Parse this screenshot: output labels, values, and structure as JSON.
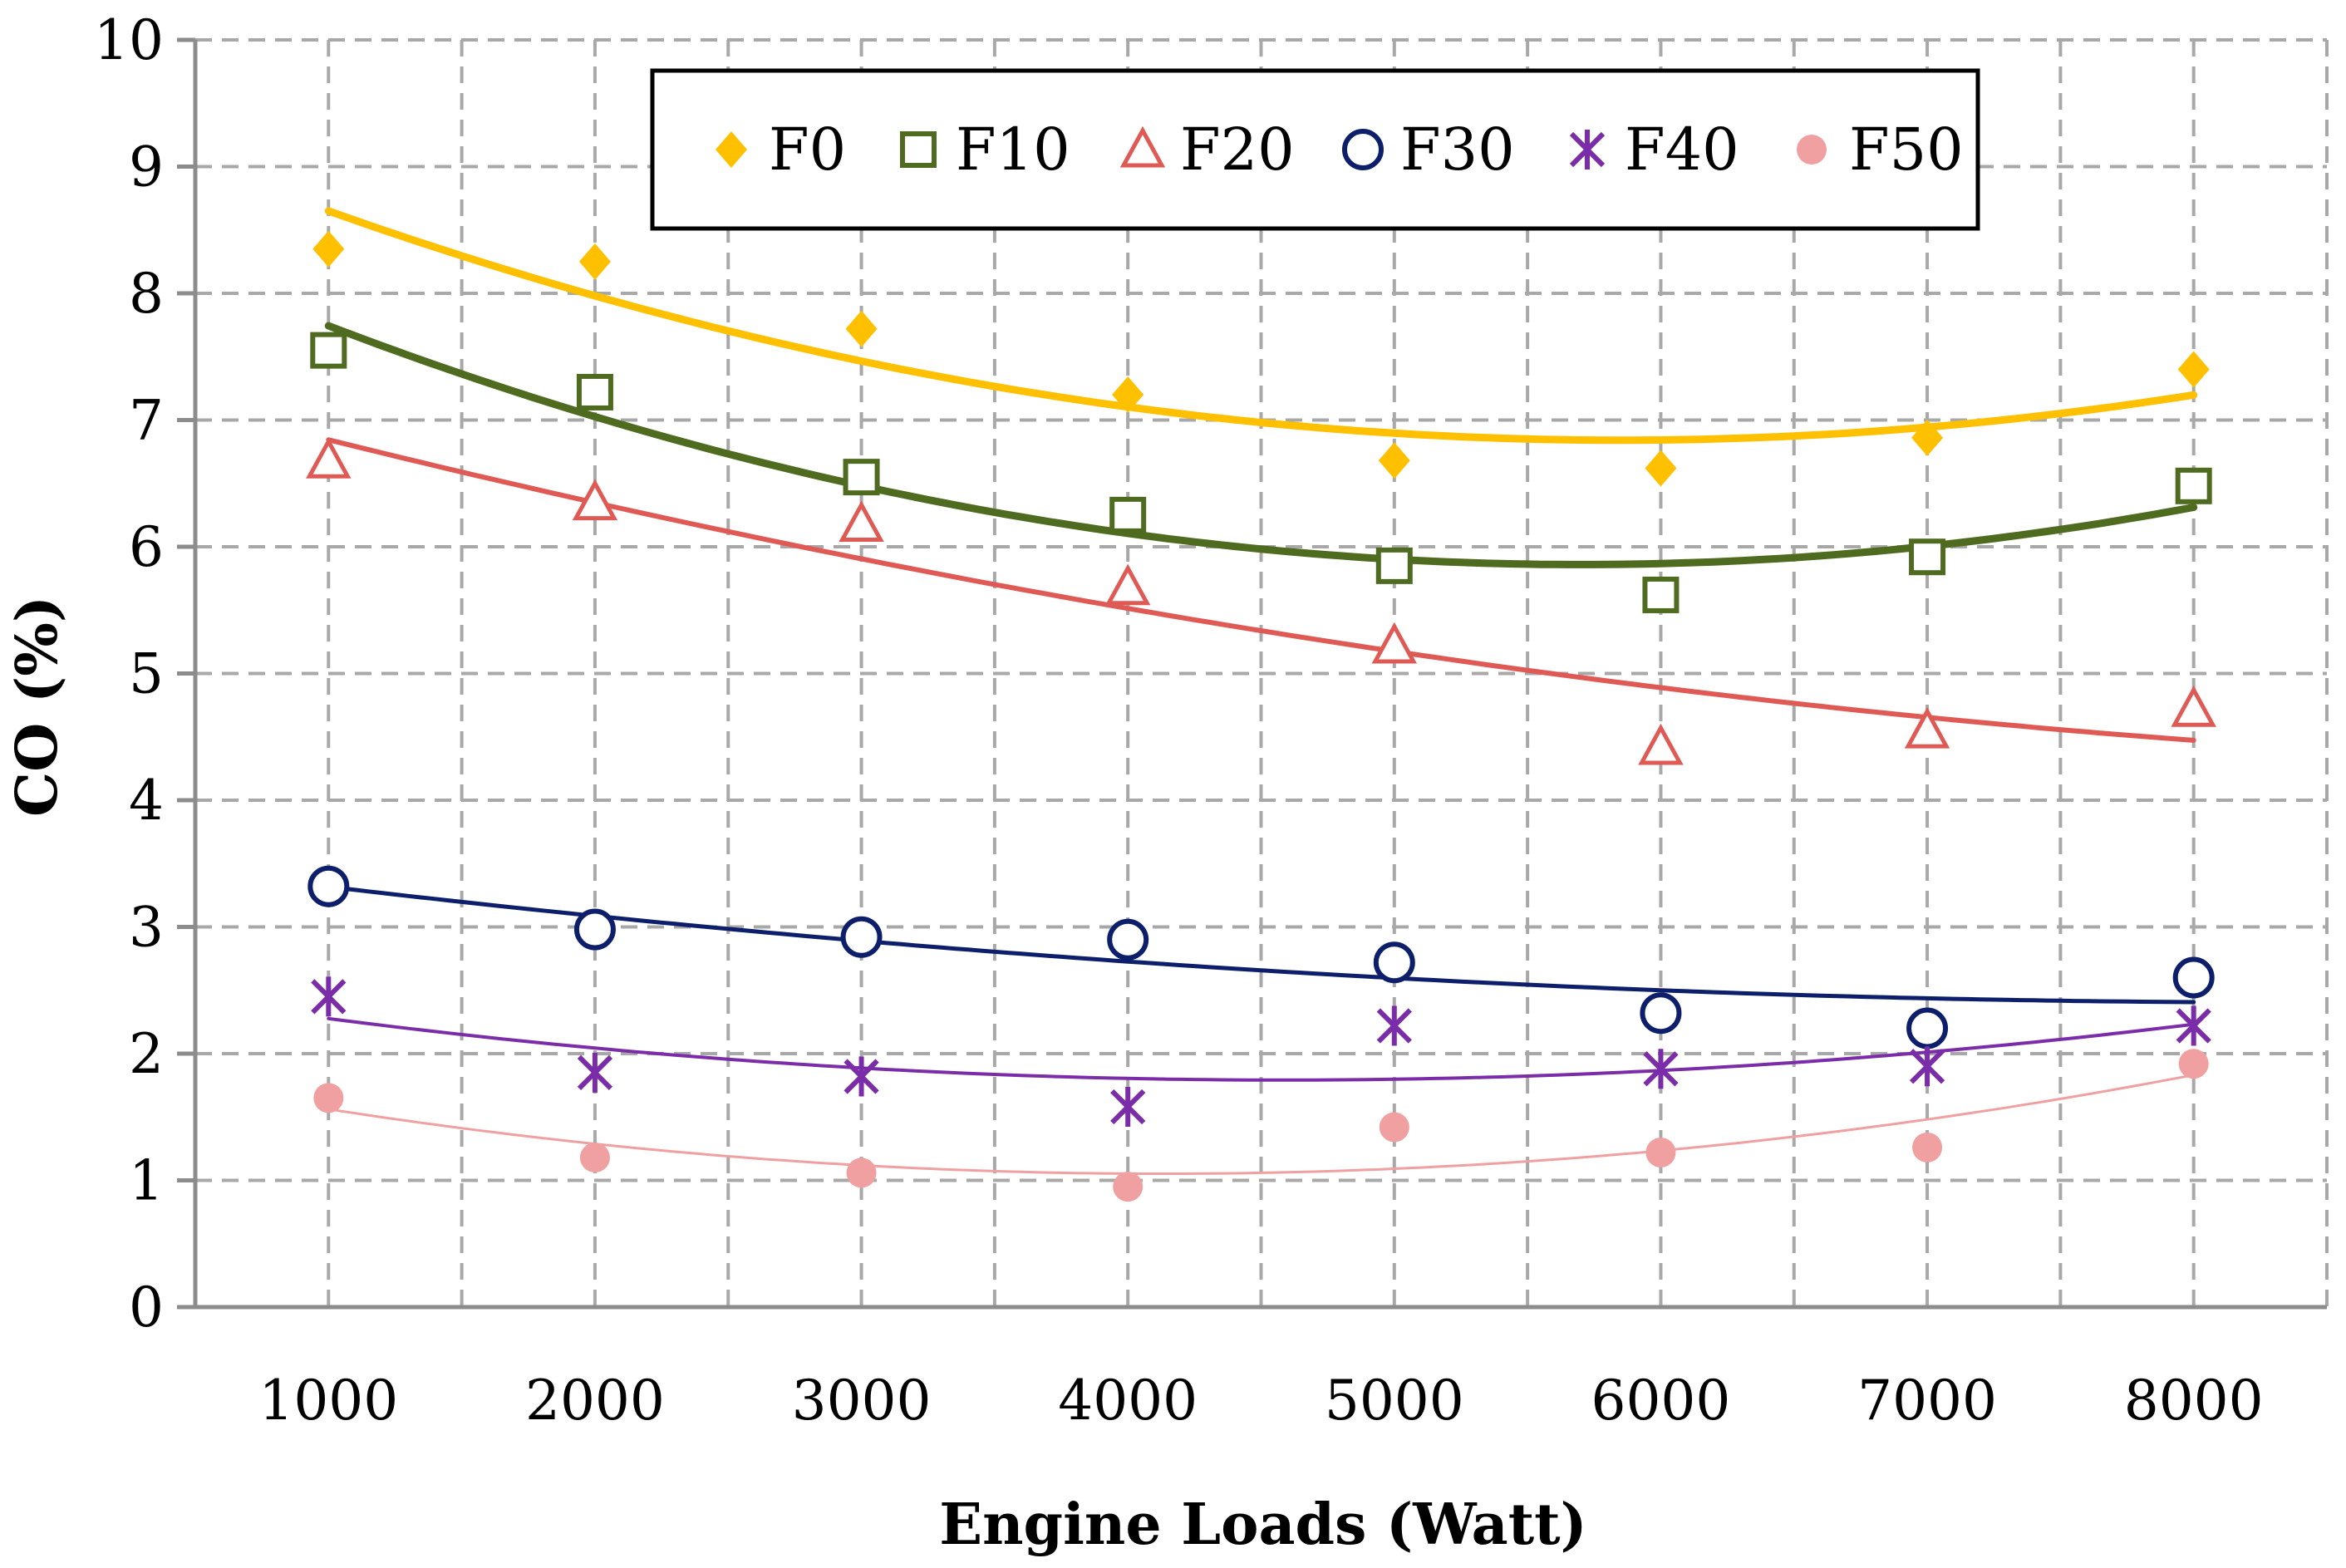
{
  "chart_data": {
    "type": "scatter",
    "xlabel": "Engine Loads (Watt)",
    "ylabel": "CO (%)",
    "x": [
      1000,
      2000,
      3000,
      4000,
      5000,
      6000,
      7000,
      8000
    ],
    "xlim": [
      500,
      8500
    ],
    "ylim": [
      0,
      10
    ],
    "x_ticks": [
      "1000",
      "2000",
      "3000",
      "4000",
      "5000",
      "6000",
      "7000",
      "8000"
    ],
    "y_ticks": [
      "0",
      "1",
      "2",
      "3",
      "4",
      "5",
      "6",
      "7",
      "8",
      "9",
      "10"
    ],
    "grid": true,
    "legend_position": "top-center",
    "trendline": "polynomial",
    "series": [
      {
        "name": "F0",
        "marker": "diamond",
        "color": "#FFC000",
        "values": [
          8.35,
          8.25,
          7.72,
          7.2,
          6.68,
          6.62,
          6.86,
          7.4
        ]
      },
      {
        "name": "F10",
        "marker": "square",
        "color": "#4E6B1F",
        "values": [
          7.55,
          7.22,
          6.55,
          6.25,
          5.85,
          5.62,
          5.92,
          6.48
        ]
      },
      {
        "name": "F20",
        "marker": "triangle",
        "color": "#E05A55",
        "values": [
          6.68,
          6.35,
          6.18,
          5.68,
          5.22,
          4.42,
          4.55,
          4.72
        ]
      },
      {
        "name": "F30",
        "marker": "circle",
        "color": "#0D1F6B",
        "values": [
          3.32,
          2.98,
          2.92,
          2.9,
          2.72,
          2.32,
          2.2,
          2.6
        ]
      },
      {
        "name": "F40",
        "marker": "star",
        "color": "#7B2CA8",
        "values": [
          2.45,
          1.85,
          1.82,
          1.58,
          2.22,
          1.88,
          1.9,
          2.22
        ]
      },
      {
        "name": "F50",
        "marker": "dot",
        "color": "#F0A0A0",
        "values": [
          1.65,
          1.18,
          1.06,
          0.95,
          1.42,
          1.22,
          1.26,
          1.92
        ]
      }
    ]
  }
}
